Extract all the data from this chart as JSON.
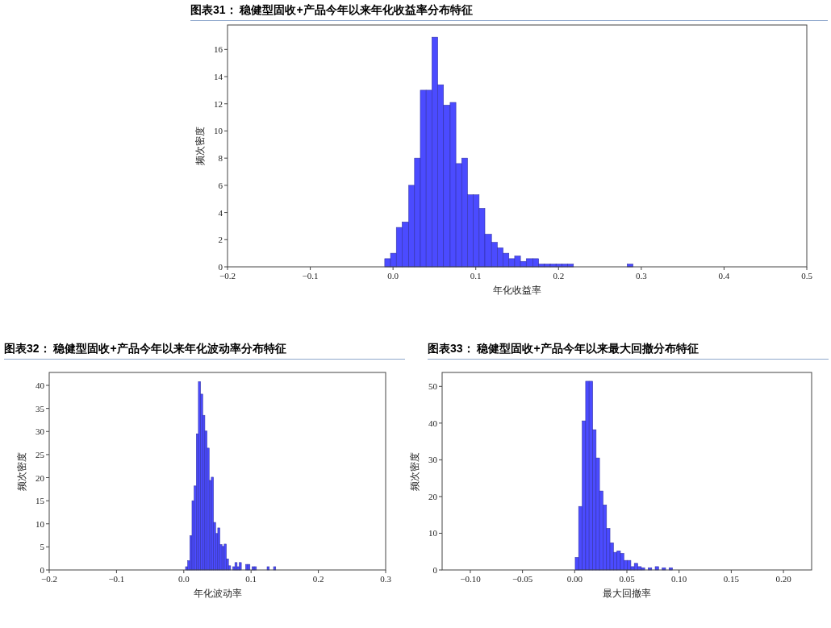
{
  "chart_data": [
    {
      "type": "histogram",
      "title": "图表31： 稳健型固收+产品今年以来年化收益率分布特征",
      "xlabel": "年化收益率",
      "ylabel": "频次密度",
      "color": "#4b4bff",
      "bins": [
        -0.01,
        -0.003,
        0.004,
        0.011,
        0.019,
        0.026,
        0.033,
        0.04,
        0.047,
        0.054,
        0.061,
        0.069,
        0.076,
        0.083,
        0.09,
        0.097,
        0.104,
        0.111,
        0.119,
        0.126,
        0.133,
        0.14,
        0.147,
        0.154,
        0.161,
        0.169,
        0.176,
        0.183,
        0.19,
        0.197,
        0.204,
        0.211,
        0.218,
        0.283,
        0.29
      ],
      "values": [
        0.6,
        1.0,
        2.9,
        3.3,
        6.0,
        8.0,
        13.0,
        13.0,
        16.9,
        13.4,
        11.9,
        12.1,
        7.6,
        8.0,
        5.3,
        5.3,
        4.3,
        2.4,
        1.8,
        1.4,
        1.0,
        0.6,
        0.8,
        0.4,
        0.6,
        0.6,
        0.2,
        0.2,
        0.2,
        0.2,
        0.2,
        0.2,
        0,
        0.2
      ],
      "xlim": [
        -0.2,
        0.5
      ],
      "xticks": [
        {
          "value": -0.2,
          "label": "−0.2"
        },
        {
          "value": -0.1,
          "label": "−0.1"
        },
        {
          "value": 0,
          "label": "0.0"
        },
        0.1,
        0.2,
        0.3,
        0.4,
        0.5
      ],
      "ylim": [
        0,
        17.8
      ],
      "yticks": [
        0,
        2,
        4,
        6,
        8,
        10,
        12,
        14,
        16
      ]
    },
    {
      "type": "histogram",
      "title": "图表32： 稳健型固收+产品今年以来年化波动率分布特征",
      "xlabel": "年化波动率",
      "ylabel": "频次密度",
      "color": "#4b4bff",
      "bins": [
        0.0026,
        0.0058,
        0.009,
        0.0122,
        0.0154,
        0.0186,
        0.0217,
        0.0249,
        0.0281,
        0.0313,
        0.0345,
        0.0377,
        0.0409,
        0.0441,
        0.0473,
        0.0505,
        0.0536,
        0.0568,
        0.06,
        0.0632,
        0.0664,
        0.0696,
        0.0728,
        0.076,
        0.0792,
        0.0824,
        0.0855,
        0.0887,
        0.0919,
        0.0951,
        0.0983,
        0.1015,
        0.1047,
        0.1079,
        0.1111,
        0.1143,
        0.1174,
        0.1206,
        0.1238,
        0.127,
        0.1302,
        0.1334,
        0.1366
      ],
      "values": [
        0.7,
        2,
        7.4,
        15,
        18.2,
        29.5,
        40.8,
        38.1,
        33.5,
        30.1,
        26.4,
        19.4,
        20.1,
        10.3,
        7.9,
        9.1,
        5.5,
        5.1,
        5.6,
        2.4,
        0.9,
        0,
        0.7,
        1.6,
        0.7,
        1.6,
        0,
        0,
        1.2,
        1.2,
        0,
        0.7,
        0.7,
        0,
        0,
        0,
        0,
        0,
        0.7,
        0,
        0,
        0.7
      ],
      "xlim": [
        -0.2,
        0.3
      ],
      "xticks": [
        {
          "value": -0.2,
          "label": "−0.2"
        },
        {
          "value": -0.1,
          "label": "−0.1"
        },
        {
          "value": 0,
          "label": "0.0"
        },
        0.1,
        0.2,
        0.3
      ],
      "ylim": [
        0,
        42.8
      ],
      "yticks": [
        0,
        5,
        10,
        15,
        20,
        25,
        30,
        35,
        40
      ]
    },
    {
      "type": "histogram",
      "title": "图表33： 稳健型固收+产品今年以来最大回撤分布特征",
      "xlabel": "最大回撤率",
      "ylabel": "频次密度",
      "color": "#4b4bff",
      "bins": [
        0.0005,
        0.0038,
        0.0072,
        0.0105,
        0.0138,
        0.0172,
        0.0205,
        0.0238,
        0.0271,
        0.0305,
        0.0338,
        0.0371,
        0.0405,
        0.0438,
        0.0471,
        0.0505,
        0.0538,
        0.0571,
        0.0604,
        0.0638,
        0.0671,
        0.0704,
        0.0738,
        0.0771,
        0.0804,
        0.0838,
        0.0871,
        0.0904,
        0.0937
      ],
      "values": [
        3.4,
        17.3,
        40.6,
        51.4,
        51.4,
        38.2,
        30.5,
        21.5,
        17.7,
        11.3,
        7.4,
        4.8,
        5.2,
        4.5,
        2.6,
        2.6,
        0.9,
        1.8,
        0.9,
        0.6,
        0,
        0.6,
        0,
        0.9,
        0,
        0.6,
        0,
        0.6
      ],
      "xlim": [
        -0.127,
        0.227
      ],
      "xticks": [
        {
          "value": -0.1,
          "label": "−0.10"
        },
        {
          "value": -0.05,
          "label": "−0.05"
        },
        {
          "value": 0,
          "label": "0.00"
        },
        {
          "value": 0.05,
          "label": "0.05"
        },
        {
          "value": 0.1,
          "label": "0.10"
        },
        {
          "value": 0.15,
          "label": "0.15"
        },
        {
          "value": 0.2,
          "label": "0.20"
        }
      ],
      "ylim": [
        0,
        53.8
      ],
      "yticks": [
        0,
        10,
        20,
        30,
        40,
        50
      ]
    }
  ]
}
